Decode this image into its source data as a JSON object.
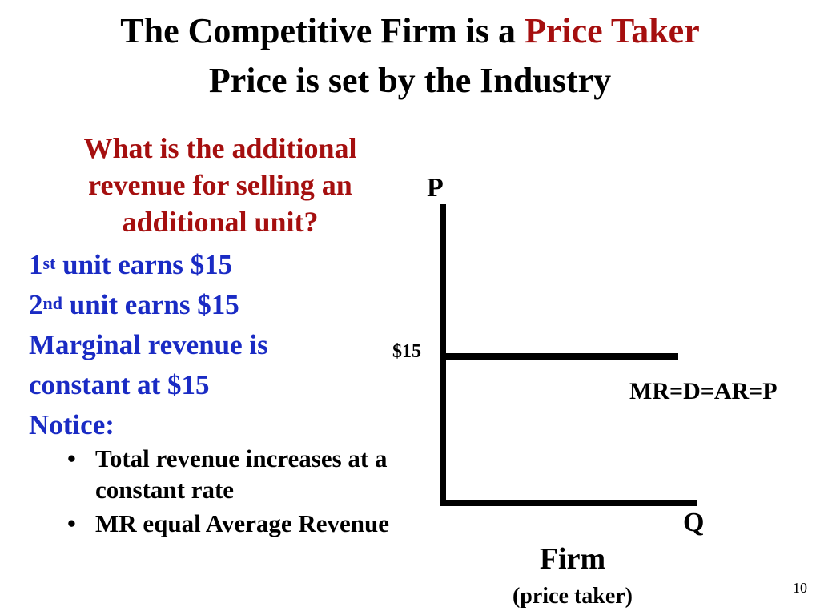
{
  "title": {
    "line1_prefix": "The Competitive Firm is a ",
    "line1_highlight": "Price Taker",
    "line2": "Price is set by the Industry"
  },
  "left_panel": {
    "question": "What is the additional revenue for selling an additional unit?",
    "unit1": {
      "number": "1",
      "suffix": "st",
      "text": " unit earns $15"
    },
    "unit2": {
      "number": "2",
      "suffix": "nd",
      "text": " unit earns $15"
    },
    "marginal_line1": "Marginal revenue is",
    "marginal_line2": "constant at $15",
    "notice": "Notice:",
    "bullets": [
      "Total revenue increases at a constant rate",
      "MR equal Average Revenue"
    ]
  },
  "graph": {
    "y_axis_label": "P",
    "x_axis_label": "Q",
    "price_label": "$15",
    "curve_label": "MR=D=AR=P",
    "caption": "Firm",
    "subcaption": "(price taker)",
    "price_level": 15
  },
  "colors": {
    "accent_red": "#a50f0f",
    "text_blue": "#1a2bc4",
    "text_black": "#000000"
  },
  "page_number": "10"
}
